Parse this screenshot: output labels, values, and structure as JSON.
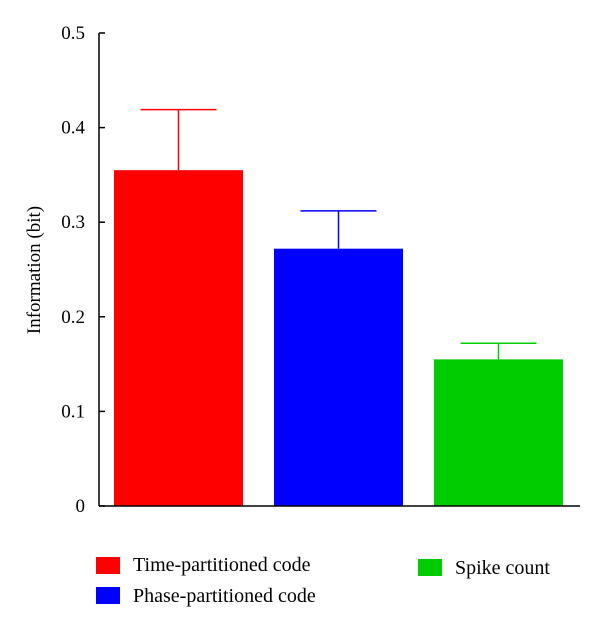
{
  "chart_data": {
    "type": "bar",
    "title": "",
    "xlabel": "",
    "ylabel": "Information (bit)",
    "ylim": [
      0,
      0.5
    ],
    "yticks": [
      0,
      0.1,
      0.2,
      0.3,
      0.4,
      0.5
    ],
    "ytick_labels": [
      "0",
      "0.1",
      "0.2",
      "0.3",
      "0.4",
      "0.5"
    ],
    "grid": false,
    "legend_position": "bottom",
    "series": [
      {
        "name": "Time-partitioned code",
        "value": 0.355,
        "error": 0.064,
        "color": "#ff0000"
      },
      {
        "name": "Phase-partitioned code",
        "value": 0.272,
        "error": 0.04,
        "color": "#0000ff"
      },
      {
        "name": "Spike count",
        "value": 0.155,
        "error": 0.017,
        "color": "#00cc00"
      }
    ]
  }
}
